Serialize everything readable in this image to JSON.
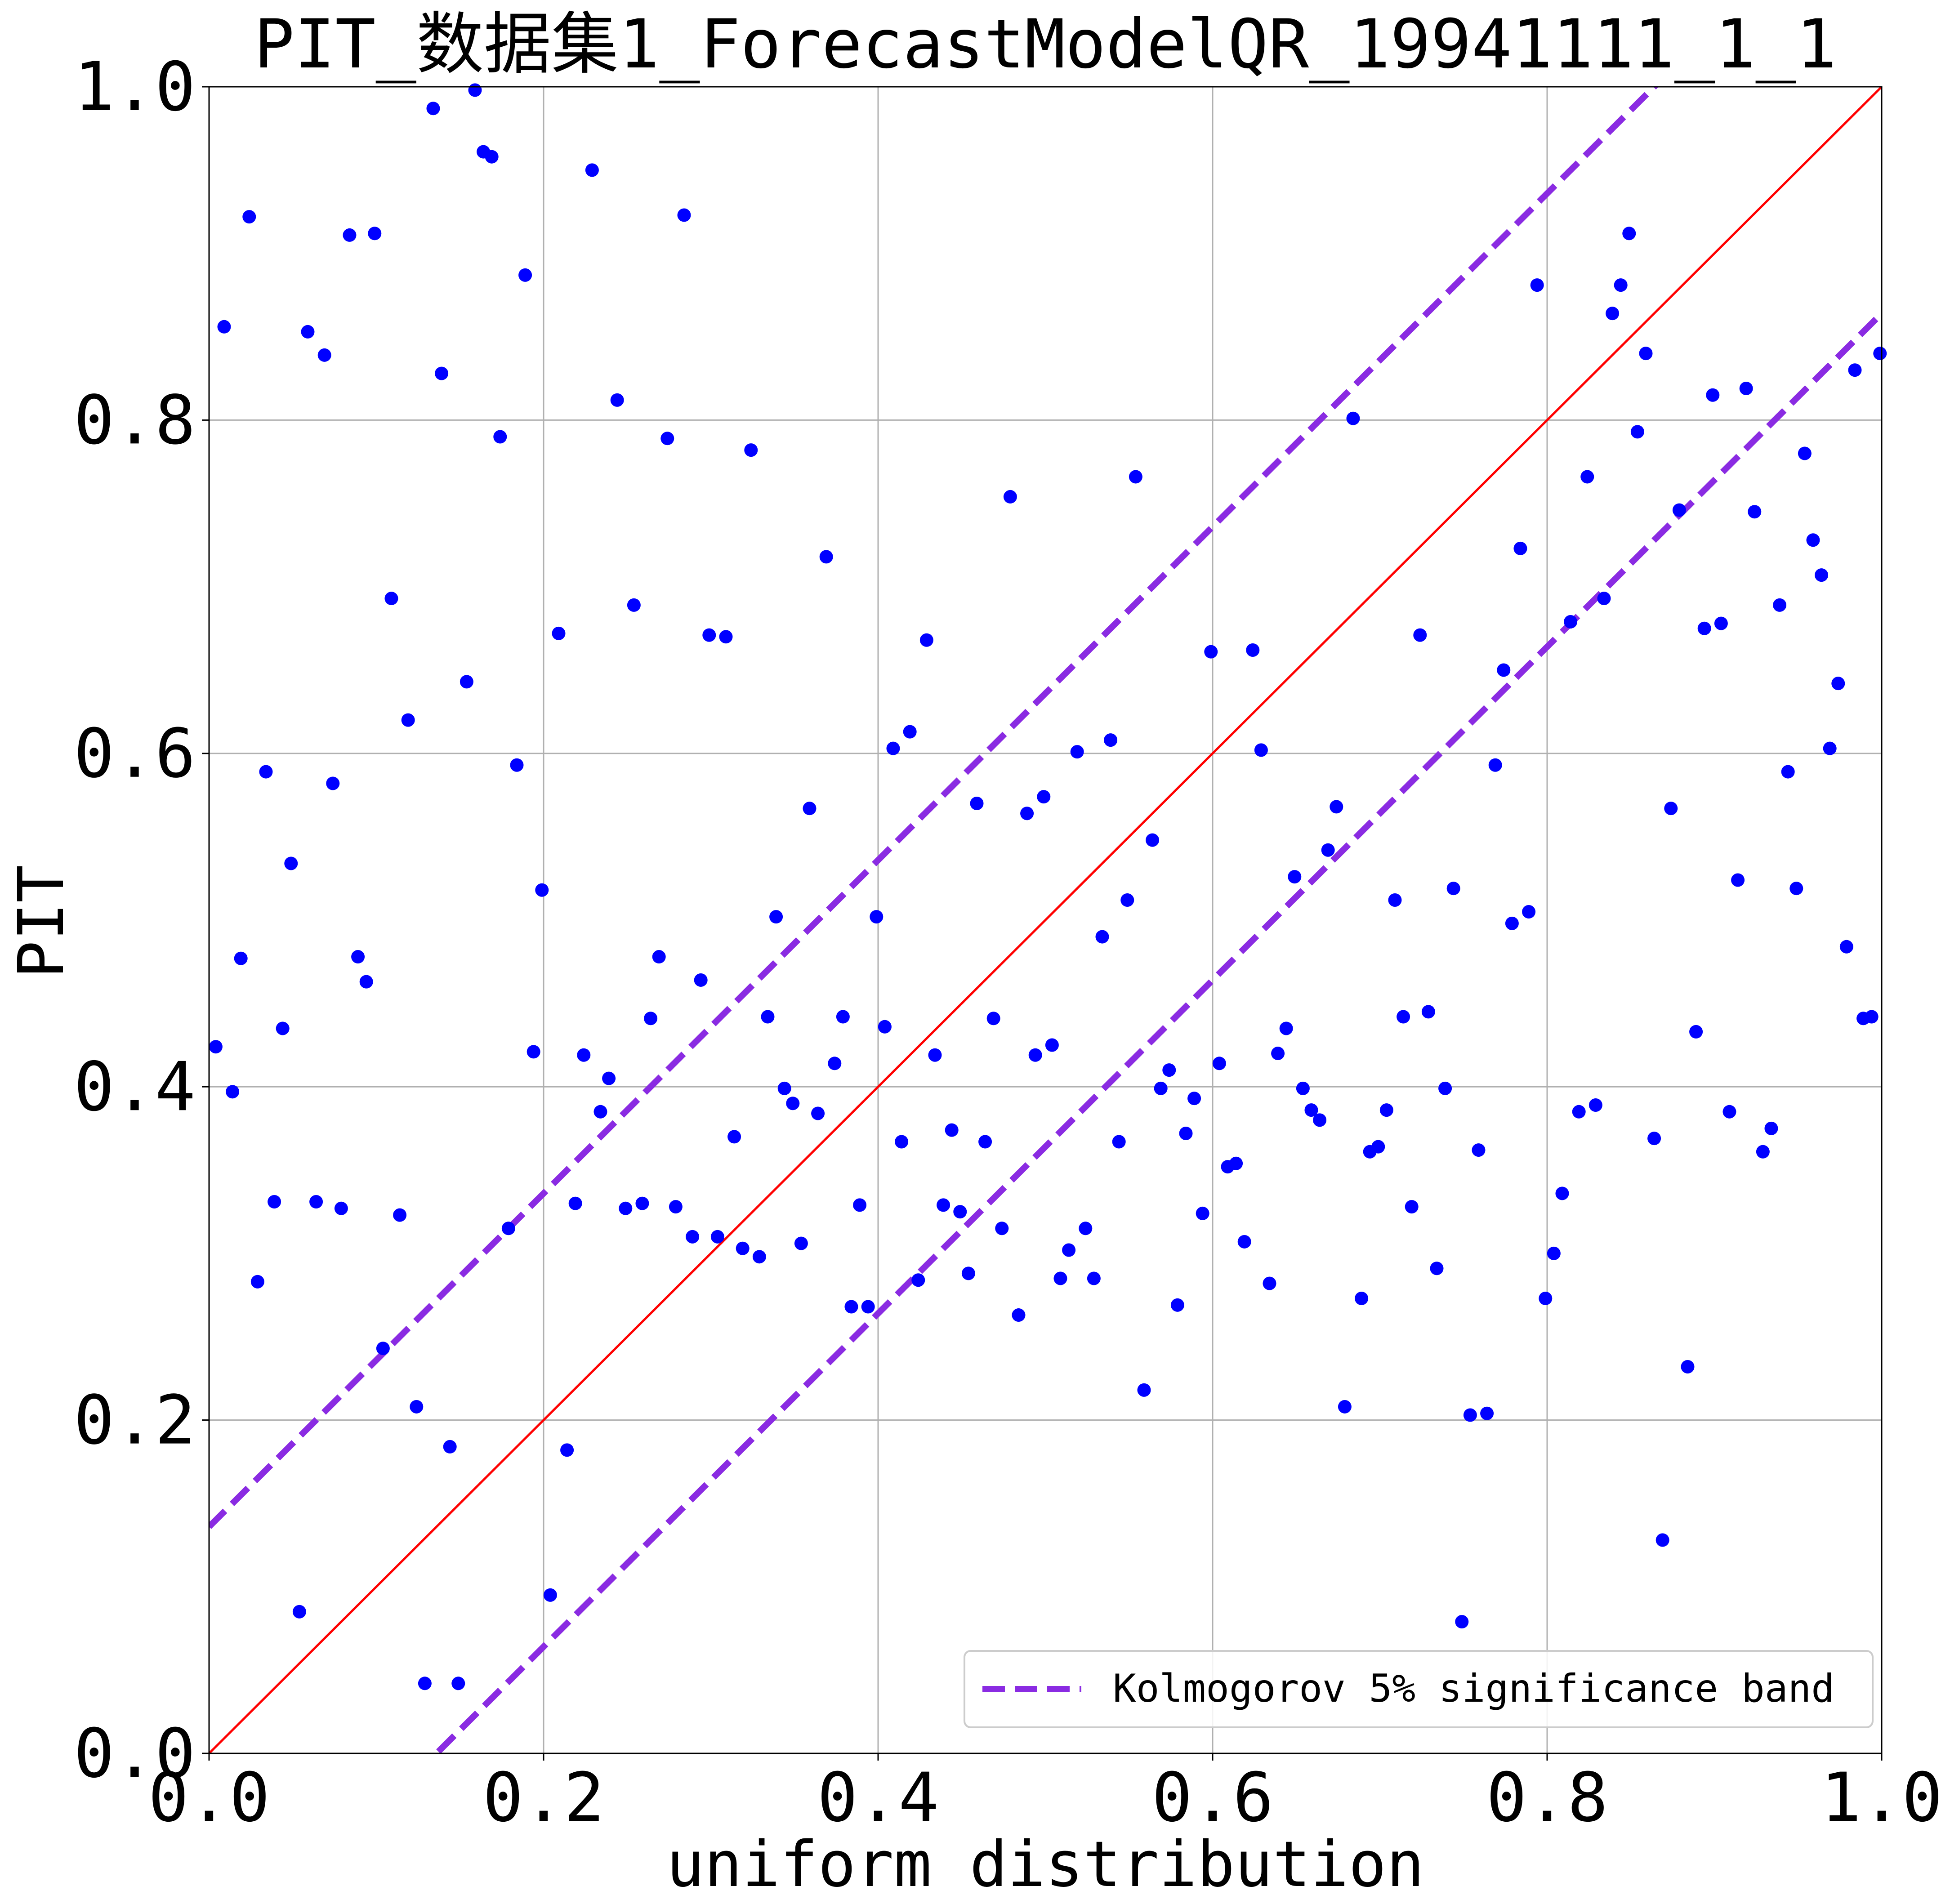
{
  "chart_data": {
    "type": "scatter",
    "title": "PIT_数据集1_ForecastModelQR_19941111_1_1",
    "xlabel": "uniform distribution",
    "ylabel": "PIT",
    "xlim": [
      0.0,
      1.0
    ],
    "ylim": [
      0.0,
      1.0
    ],
    "xticks": [
      "0.0",
      "0.2",
      "0.4",
      "0.6",
      "0.8",
      "1.0"
    ],
    "yticks": [
      "0.0",
      "0.2",
      "0.4",
      "0.6",
      "0.8",
      "1.0"
    ],
    "grid": true,
    "legend": {
      "position": "bottom-right",
      "entries": [
        "Kolmogorov 5% significance band"
      ]
    },
    "reference_line": {
      "from": [
        0,
        0
      ],
      "to": [
        1,
        1
      ],
      "color": "#ff0000"
    },
    "band": {
      "offset": 0.136,
      "color": "#8a2be2",
      "style": "dashed"
    },
    "points_color": "#0000ff",
    "points": [
      [
        0.004,
        0.424
      ],
      [
        0.009,
        0.856
      ],
      [
        0.014,
        0.397
      ],
      [
        0.019,
        0.477
      ],
      [
        0.024,
        0.922
      ],
      [
        0.029,
        0.283
      ],
      [
        0.034,
        0.589
      ],
      [
        0.039,
        0.331
      ],
      [
        0.044,
        0.435
      ],
      [
        0.049,
        0.534
      ],
      [
        0.054,
        0.085
      ],
      [
        0.059,
        0.853
      ],
      [
        0.064,
        0.331
      ],
      [
        0.069,
        0.839
      ],
      [
        0.074,
        0.582
      ],
      [
        0.079,
        0.327
      ],
      [
        0.084,
        0.911
      ],
      [
        0.089,
        0.478
      ],
      [
        0.094,
        0.463
      ],
      [
        0.099,
        0.912
      ],
      [
        0.104,
        0.243
      ],
      [
        0.109,
        0.693
      ],
      [
        0.114,
        0.323
      ],
      [
        0.119,
        0.62
      ],
      [
        0.124,
        0.208
      ],
      [
        0.129,
        0.042
      ],
      [
        0.134,
        0.987
      ],
      [
        0.139,
        0.828
      ],
      [
        0.144,
        0.184
      ],
      [
        0.149,
        0.042
      ],
      [
        0.154,
        0.643
      ],
      [
        0.159,
        0.998
      ],
      [
        0.164,
        0.961
      ],
      [
        0.169,
        0.958
      ],
      [
        0.174,
        0.79
      ],
      [
        0.179,
        0.315
      ],
      [
        0.184,
        0.593
      ],
      [
        0.189,
        0.887
      ],
      [
        0.194,
        0.421
      ],
      [
        0.199,
        0.518
      ],
      [
        0.204,
        0.095
      ],
      [
        0.209,
        0.672
      ],
      [
        0.214,
        0.182
      ],
      [
        0.219,
        0.33
      ],
      [
        0.224,
        0.419
      ],
      [
        0.229,
        0.95
      ],
      [
        0.234,
        0.385
      ],
      [
        0.239,
        0.405
      ],
      [
        0.244,
        0.812
      ],
      [
        0.249,
        0.327
      ],
      [
        0.254,
        0.689
      ],
      [
        0.259,
        0.33
      ],
      [
        0.264,
        0.441
      ],
      [
        0.269,
        0.478
      ],
      [
        0.274,
        0.789
      ],
      [
        0.279,
        0.328
      ],
      [
        0.284,
        0.923
      ],
      [
        0.289,
        0.31
      ],
      [
        0.294,
        0.464
      ],
      [
        0.299,
        0.671
      ],
      [
        0.304,
        0.31
      ],
      [
        0.309,
        0.67
      ],
      [
        0.314,
        0.37
      ],
      [
        0.319,
        0.303
      ],
      [
        0.324,
        0.782
      ],
      [
        0.329,
        0.298
      ],
      [
        0.334,
        0.442
      ],
      [
        0.339,
        0.502
      ],
      [
        0.344,
        0.399
      ],
      [
        0.349,
        0.39
      ],
      [
        0.354,
        0.306
      ],
      [
        0.359,
        0.567
      ],
      [
        0.364,
        0.384
      ],
      [
        0.369,
        0.718
      ],
      [
        0.374,
        0.414
      ],
      [
        0.379,
        0.442
      ],
      [
        0.384,
        0.268
      ],
      [
        0.389,
        0.329
      ],
      [
        0.394,
        0.268
      ],
      [
        0.399,
        0.502
      ],
      [
        0.404,
        0.436
      ],
      [
        0.409,
        0.603
      ],
      [
        0.414,
        0.367
      ],
      [
        0.419,
        0.613
      ],
      [
        0.424,
        0.284
      ],
      [
        0.429,
        0.668
      ],
      [
        0.434,
        0.419
      ],
      [
        0.439,
        0.329
      ],
      [
        0.444,
        0.374
      ],
      [
        0.449,
        0.325
      ],
      [
        0.454,
        0.288
      ],
      [
        0.459,
        0.57
      ],
      [
        0.464,
        0.367
      ],
      [
        0.469,
        0.441
      ],
      [
        0.474,
        0.315
      ],
      [
        0.479,
        0.754
      ],
      [
        0.484,
        0.263
      ],
      [
        0.489,
        0.564
      ],
      [
        0.494,
        0.419
      ],
      [
        0.499,
        0.574
      ],
      [
        0.504,
        0.425
      ],
      [
        0.509,
        0.285
      ],
      [
        0.514,
        0.302
      ],
      [
        0.519,
        0.601
      ],
      [
        0.524,
        0.315
      ],
      [
        0.529,
        0.285
      ],
      [
        0.534,
        0.49
      ],
      [
        0.539,
        0.608
      ],
      [
        0.544,
        0.367
      ],
      [
        0.549,
        0.512
      ],
      [
        0.554,
        0.766
      ],
      [
        0.559,
        0.218
      ],
      [
        0.564,
        0.548
      ],
      [
        0.569,
        0.399
      ],
      [
        0.574,
        0.41
      ],
      [
        0.579,
        0.269
      ],
      [
        0.584,
        0.372
      ],
      [
        0.589,
        0.393
      ],
      [
        0.594,
        0.324
      ],
      [
        0.599,
        0.661
      ],
      [
        0.604,
        0.414
      ],
      [
        0.609,
        0.352
      ],
      [
        0.614,
        0.354
      ],
      [
        0.619,
        0.307
      ],
      [
        0.624,
        0.662
      ],
      [
        0.629,
        0.602
      ],
      [
        0.634,
        0.282
      ],
      [
        0.639,
        0.42
      ],
      [
        0.644,
        0.435
      ],
      [
        0.649,
        0.526
      ],
      [
        0.654,
        0.399
      ],
      [
        0.659,
        0.386
      ],
      [
        0.664,
        0.38
      ],
      [
        0.669,
        0.542
      ],
      [
        0.674,
        0.568
      ],
      [
        0.679,
        0.208
      ],
      [
        0.684,
        0.801
      ],
      [
        0.689,
        0.273
      ],
      [
        0.694,
        0.361
      ],
      [
        0.699,
        0.364
      ],
      [
        0.704,
        0.386
      ],
      [
        0.709,
        0.512
      ],
      [
        0.714,
        0.442
      ],
      [
        0.719,
        0.328
      ],
      [
        0.724,
        0.671
      ],
      [
        0.729,
        0.445
      ],
      [
        0.734,
        0.291
      ],
      [
        0.739,
        0.399
      ],
      [
        0.744,
        0.519
      ],
      [
        0.749,
        0.079
      ],
      [
        0.754,
        0.203
      ],
      [
        0.759,
        0.362
      ],
      [
        0.764,
        0.204
      ],
      [
        0.769,
        0.593
      ],
      [
        0.774,
        0.65
      ],
      [
        0.779,
        0.498
      ],
      [
        0.784,
        0.723
      ],
      [
        0.789,
        0.505
      ],
      [
        0.794,
        0.881
      ],
      [
        0.799,
        0.273
      ],
      [
        0.804,
        0.3
      ],
      [
        0.809,
        0.336
      ],
      [
        0.814,
        0.679
      ],
      [
        0.819,
        0.385
      ],
      [
        0.824,
        0.766
      ],
      [
        0.829,
        0.389
      ],
      [
        0.834,
        0.693
      ],
      [
        0.839,
        0.864
      ],
      [
        0.844,
        0.881
      ],
      [
        0.849,
        0.912
      ],
      [
        0.854,
        0.793
      ],
      [
        0.859,
        0.84
      ],
      [
        0.864,
        0.369
      ],
      [
        0.869,
        0.128
      ],
      [
        0.874,
        0.567
      ],
      [
        0.879,
        0.746
      ],
      [
        0.884,
        0.232
      ],
      [
        0.889,
        0.433
      ],
      [
        0.894,
        0.675
      ],
      [
        0.899,
        0.815
      ],
      [
        0.904,
        0.678
      ],
      [
        0.909,
        0.385
      ],
      [
        0.914,
        0.524
      ],
      [
        0.919,
        0.819
      ],
      [
        0.924,
        0.745
      ],
      [
        0.929,
        0.361
      ],
      [
        0.934,
        0.375
      ],
      [
        0.939,
        0.689
      ],
      [
        0.944,
        0.589
      ],
      [
        0.949,
        0.519
      ],
      [
        0.954,
        0.78
      ],
      [
        0.959,
        0.728
      ],
      [
        0.964,
        0.707
      ],
      [
        0.969,
        0.603
      ],
      [
        0.974,
        0.642
      ],
      [
        0.979,
        0.484
      ],
      [
        0.984,
        0.83
      ],
      [
        0.989,
        0.441
      ],
      [
        0.994,
        0.442
      ],
      [
        0.999,
        0.84
      ]
    ]
  }
}
